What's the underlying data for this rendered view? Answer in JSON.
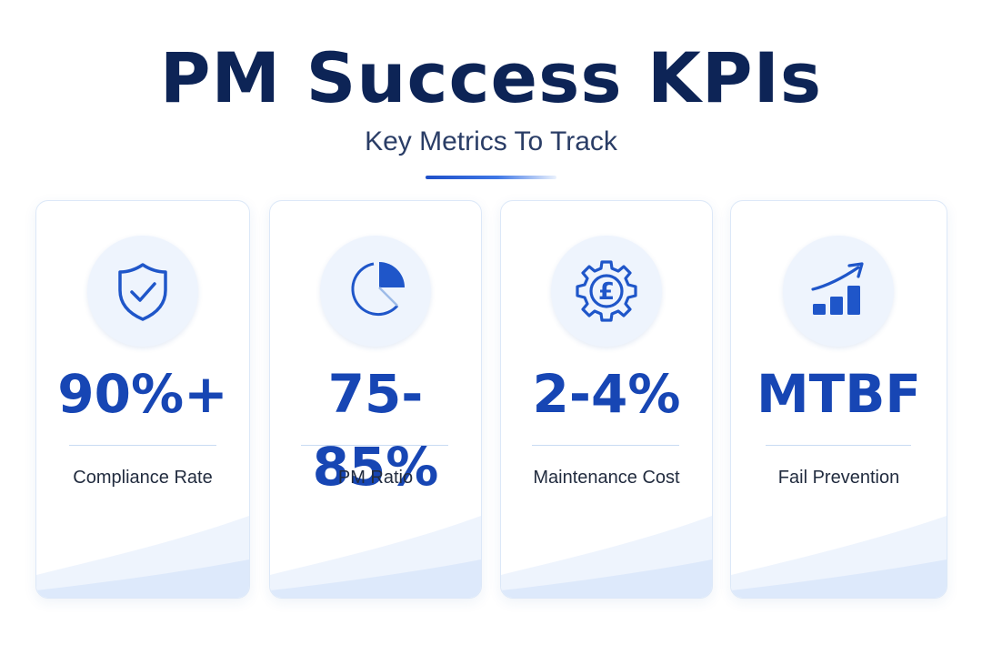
{
  "header": {
    "title": "PM Success KPIs",
    "subtitle": "Key Metrics To Track"
  },
  "colors": {
    "primary": "#1746b4",
    "title": "#0d2456",
    "icon_bg": "#eef4fd",
    "card_border": "#dce8f8"
  },
  "cards": [
    {
      "metric": "90%+",
      "label": "Compliance Rate",
      "icon": "shield-check-icon"
    },
    {
      "metric": "75-85%",
      "label": "PM Ratio",
      "icon": "pie-chart-icon"
    },
    {
      "metric": "2-4%",
      "label": "Maintenance Cost",
      "icon": "gear-pound-icon"
    },
    {
      "metric": "MTBF",
      "label": "Fail Prevention",
      "icon": "rising-bar-chart-icon"
    }
  ]
}
